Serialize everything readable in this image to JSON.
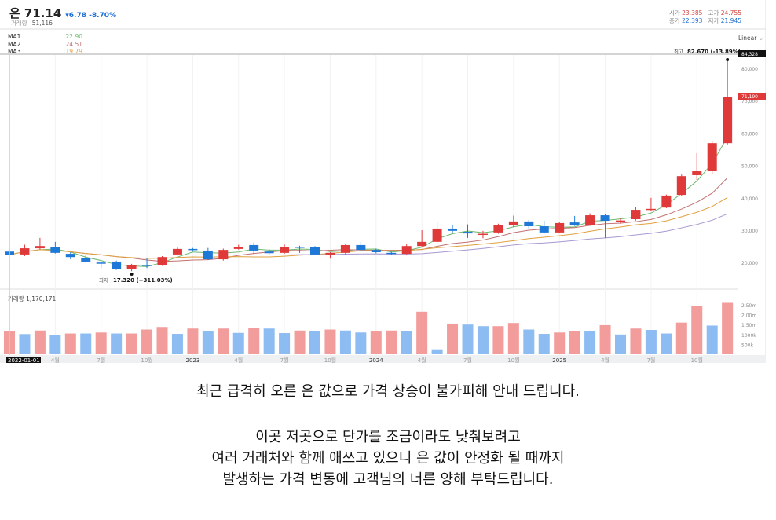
{
  "header": {
    "name": "은",
    "price": "71.14",
    "change": "▾6.78 -8.70%",
    "volume_label": "거래량",
    "volume": "51,116"
  },
  "ohlc": {
    "open_label": "시가",
    "open": "23.385",
    "high_label": "고가",
    "high": "24.755",
    "close_label": "종가",
    "close": "22.393",
    "low_label": "저가",
    "low": "21.945"
  },
  "ma": [
    {
      "label": "MA1",
      "value": "22.90",
      "color": "#6cb86c"
    },
    {
      "label": "MA2",
      "value": "24.51",
      "color": "#c0706f"
    },
    {
      "label": "MA3",
      "value": "19.79",
      "color": "#e0a040"
    }
  ],
  "scale_mode": "Linear",
  "colors": {
    "up": "#e0393a",
    "down": "#1e78d8",
    "vol_up": "#f29c9c",
    "vol_down": "#8cbcf2",
    "ma4": "#a898d0"
  },
  "chart_data": {
    "type": "candlestick",
    "start": "2022-01-01",
    "interval": "month",
    "ylim": [
      15000,
      85000
    ],
    "y_ticks": [
      "80,000",
      "70,000",
      "60,000",
      "50,000",
      "40,000",
      "30,000",
      "20,000"
    ],
    "x_ticks": [
      "2022-01-01",
      "4월",
      "7월",
      "10월",
      "2023",
      "4월",
      "7월",
      "10월",
      "2024",
      "4월",
      "7월",
      "10월",
      "2025",
      "4월",
      "7월",
      "10월"
    ],
    "ohlc": [
      [
        23.39,
        24.76,
        21.95,
        22.39
      ],
      [
        22.5,
        25.5,
        22.0,
        24.4
      ],
      [
        24.4,
        27.6,
        24.0,
        25.1
      ],
      [
        24.9,
        26.4,
        22.8,
        23.0
      ],
      [
        22.7,
        23.2,
        21.0,
        21.7
      ],
      [
        21.5,
        22.3,
        20.0,
        20.3
      ],
      [
        20.0,
        20.2,
        18.4,
        19.9
      ],
      [
        20.3,
        20.6,
        17.7,
        17.9
      ],
      [
        17.9,
        19.6,
        17.32,
        19.1
      ],
      [
        19.3,
        21.3,
        18.3,
        19.2
      ],
      [
        19.1,
        22.0,
        19.0,
        21.7
      ],
      [
        22.5,
        24.6,
        22.2,
        24.2
      ],
      [
        24.2,
        24.5,
        23.4,
        23.9
      ],
      [
        23.7,
        24.5,
        20.8,
        21.0
      ],
      [
        21.0,
        24.3,
        20.6,
        23.9
      ],
      [
        24.2,
        25.5,
        24.0,
        24.9
      ],
      [
        25.4,
        26.2,
        22.6,
        23.7
      ],
      [
        23.4,
        24.2,
        22.4,
        22.9
      ],
      [
        23.0,
        25.6,
        22.7,
        24.9
      ],
      [
        24.9,
        25.2,
        23.0,
        24.7
      ],
      [
        24.9,
        25.1,
        22.3,
        22.5
      ],
      [
        22.5,
        23.2,
        21.2,
        23.0
      ],
      [
        23.0,
        25.8,
        22.6,
        25.4
      ],
      [
        25.4,
        26.3,
        23.5,
        23.9
      ],
      [
        23.9,
        24.3,
        22.9,
        23.2
      ],
      [
        23.0,
        23.4,
        22.4,
        22.7
      ],
      [
        22.7,
        25.6,
        22.5,
        25.1
      ],
      [
        25.1,
        30.0,
        24.8,
        26.4
      ],
      [
        26.4,
        32.4,
        26.1,
        30.5
      ],
      [
        30.5,
        31.6,
        29.2,
        29.8
      ],
      [
        29.5,
        31.8,
        27.6,
        29.0
      ],
      [
        28.8,
        29.8,
        27.5,
        28.9
      ],
      [
        29.3,
        32.0,
        28.9,
        31.5
      ],
      [
        31.5,
        34.5,
        31.0,
        32.7
      ],
      [
        32.7,
        33.2,
        30.5,
        31.2
      ],
      [
        31.2,
        32.9,
        28.9,
        29.3
      ],
      [
        29.3,
        32.6,
        29.0,
        32.2
      ],
      [
        32.4,
        34.4,
        31.3,
        31.5
      ],
      [
        31.7,
        35.2,
        31.5,
        34.6
      ],
      [
        34.6,
        35.0,
        27.6,
        32.9
      ],
      [
        32.8,
        33.8,
        32.0,
        33.0
      ],
      [
        33.4,
        37.2,
        33.0,
        36.3
      ],
      [
        36.3,
        40.0,
        36.0,
        36.6
      ],
      [
        37.0,
        41.0,
        36.8,
        40.7
      ],
      [
        40.9,
        47.2,
        40.6,
        46.7
      ],
      [
        47.0,
        53.8,
        45.5,
        48.2
      ],
      [
        48.2,
        57.4,
        47.2,
        56.9
      ],
      [
        56.9,
        82.67,
        56.5,
        71.19
      ]
    ],
    "volume": [
      1.15,
      1.02,
      1.2,
      0.98,
      1.05,
      1.05,
      1.1,
      1.05,
      1.05,
      1.25,
      1.38,
      1.03,
      1.3,
      1.15,
      1.3,
      1.08,
      1.35,
      1.3,
      1.07,
      1.2,
      1.18,
      1.25,
      1.2,
      1.1,
      1.15,
      1.2,
      1.18,
      2.15,
      0.25,
      1.55,
      1.5,
      1.42,
      1.42,
      1.58,
      1.25,
      1.03,
      1.1,
      1.18,
      1.15,
      1.47,
      1.0,
      1.3,
      1.23,
      1.05,
      1.6,
      2.45,
      1.45,
      2.6
    ],
    "volume_up": [
      1,
      0,
      1,
      0,
      1,
      0,
      1,
      0,
      1,
      1,
      1,
      0,
      1,
      0,
      1,
      0,
      1,
      0,
      0,
      1,
      0,
      1,
      0,
      0,
      1,
      1,
      0,
      1,
      0,
      1,
      0,
      0,
      1,
      1,
      0,
      0,
      1,
      1,
      0,
      1,
      0,
      1,
      0,
      0,
      1,
      1,
      0,
      1
    ],
    "volume_ticks": [
      "2.50m",
      "2.00m",
      "1.50m",
      "1000k",
      "500k"
    ],
    "volume_label": "거래량 1,170,171",
    "high_label": "최고",
    "high_value": "82.670 (-13.89%)",
    "low_label": "최저",
    "low_value": "17.320 (+311.03%)",
    "last_high_tag": "84,328",
    "last_price_tag": "71,190"
  },
  "message": {
    "line1": "최근 급격히 오른 은 값으로 가격 상승이 불가피해 안내 드립니다.",
    "line2": "이곳 저곳으로 단가를 조금이라도 낮춰보려고",
    "line3": "여러 거래처와 함께 애쓰고 있으니 은 값이 안정화 될 때까지",
    "line4": "발생하는 가격 변동에 고객님의 너른 양해 부탁드립니다."
  }
}
